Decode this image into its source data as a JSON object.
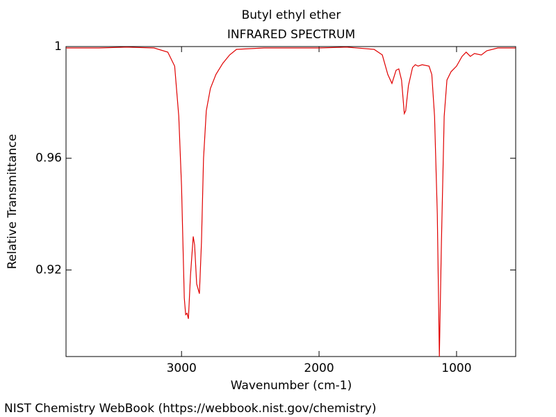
{
  "chart_data": {
    "type": "line",
    "title": "Butyl ethyl ether",
    "subtitle": "INFRARED SPECTRUM",
    "x_label": "Wavenumber (cm-1)",
    "y_label": "Relative Transmittance",
    "source": "NIST Chemistry WebBook (https://webbook.nist.gov/chemistry)",
    "xlim": [
      3840,
      570
    ],
    "ylim": [
      0.889,
      1.0
    ],
    "xticks": [
      3000,
      2000,
      1000
    ],
    "yticks": [
      1,
      0.96,
      0.92
    ],
    "series": [
      {
        "color": "#e00000",
        "x": [
          3840,
          3600,
          3400,
          3200,
          3100,
          3050,
          3020,
          3000,
          2980,
          2970,
          2960,
          2950,
          2935,
          2915,
          2905,
          2890,
          2870,
          2855,
          2840,
          2820,
          2790,
          2750,
          2700,
          2650,
          2600,
          2400,
          2000,
          1800,
          1600,
          1540,
          1500,
          1470,
          1440,
          1420,
          1400,
          1380,
          1370,
          1350,
          1320,
          1300,
          1280,
          1250,
          1200,
          1180,
          1160,
          1140,
          1125,
          1110,
          1090,
          1070,
          1040,
          1000,
          960,
          930,
          900,
          870,
          820,
          780,
          700,
          571
        ],
        "values": [
          0.9995,
          0.9995,
          0.9998,
          0.9995,
          0.998,
          0.993,
          0.975,
          0.95,
          0.91,
          0.904,
          0.9045,
          0.9025,
          0.918,
          0.932,
          0.929,
          0.915,
          0.9115,
          0.93,
          0.96,
          0.977,
          0.985,
          0.99,
          0.994,
          0.997,
          0.999,
          0.9995,
          0.9995,
          0.9998,
          0.999,
          0.997,
          0.99,
          0.9868,
          0.9915,
          0.992,
          0.988,
          0.976,
          0.977,
          0.986,
          0.9925,
          0.9935,
          0.993,
          0.9935,
          0.993,
          0.99,
          0.975,
          0.94,
          0.889,
          0.93,
          0.975,
          0.988,
          0.991,
          0.993,
          0.9965,
          0.998,
          0.9965,
          0.9975,
          0.997,
          0.9985,
          0.9995,
          0.9995
        ]
      }
    ]
  }
}
